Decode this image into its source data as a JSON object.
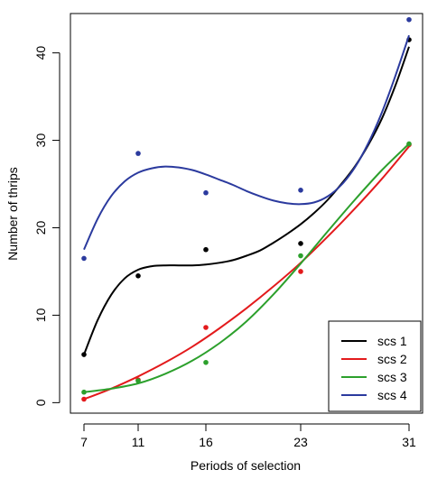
{
  "chart_data": {
    "type": "scatter",
    "title": "",
    "xlabel": "Periods of selection",
    "ylabel": "Number of thrips",
    "x_ticks": [
      "7",
      "11",
      "16",
      "23",
      "31"
    ],
    "y_ticks": [
      "0",
      "10",
      "20",
      "30",
      "40"
    ],
    "xlim": [
      6.0,
      32.0
    ],
    "ylim": [
      -1.2,
      44.5
    ],
    "legend_position": "bottom-right",
    "x": [
      7,
      11,
      16,
      23,
      31
    ],
    "series": [
      {
        "name": "scs 1",
        "color": "#000000",
        "points": [
          5.5,
          14.5,
          17.5,
          18.2,
          41.5
        ],
        "curve": [
          [
            7,
            5.5
          ],
          [
            8,
            9.4
          ],
          [
            9,
            12.3
          ],
          [
            10,
            14.2
          ],
          [
            11,
            15.2
          ],
          [
            12,
            15.6
          ],
          [
            13,
            15.7
          ],
          [
            14,
            15.7
          ],
          [
            15,
            15.7
          ],
          [
            16,
            15.8
          ],
          [
            17,
            16.0
          ],
          [
            18,
            16.3
          ],
          [
            19,
            16.8
          ],
          [
            20,
            17.4
          ],
          [
            21,
            18.3
          ],
          [
            22,
            19.3
          ],
          [
            23,
            20.4
          ],
          [
            24,
            21.7
          ],
          [
            25,
            23.2
          ],
          [
            26,
            25.0
          ],
          [
            27,
            27.0
          ],
          [
            28,
            29.5
          ],
          [
            29,
            32.5
          ],
          [
            30,
            36.3
          ],
          [
            31,
            40.7
          ]
        ]
      },
      {
        "name": "scs 2",
        "color": "#e31a1c",
        "points": [
          0.4,
          2.6,
          8.6,
          15.0,
          29.5
        ],
        "curve": [
          [
            7,
            0.4
          ],
          [
            9,
            1.6
          ],
          [
            11,
            3.0
          ],
          [
            13,
            4.6
          ],
          [
            15,
            6.4
          ],
          [
            17,
            8.5
          ],
          [
            19,
            10.8
          ],
          [
            21,
            13.3
          ],
          [
            23,
            16.0
          ],
          [
            25,
            19.0
          ],
          [
            27,
            22.2
          ],
          [
            29,
            25.6
          ],
          [
            31,
            29.3
          ]
        ]
      },
      {
        "name": "scs 3",
        "color": "#2ca02c",
        "points": [
          1.2,
          2.5,
          4.6,
          16.8,
          29.6
        ],
        "curve": [
          [
            7,
            1.2
          ],
          [
            9,
            1.6
          ],
          [
            11,
            2.2
          ],
          [
            13,
            3.3
          ],
          [
            15,
            4.8
          ],
          [
            17,
            6.8
          ],
          [
            19,
            9.3
          ],
          [
            21,
            12.4
          ],
          [
            23,
            15.9
          ],
          [
            25,
            19.6
          ],
          [
            27,
            23.2
          ],
          [
            29,
            26.6
          ],
          [
            31,
            29.6
          ]
        ]
      },
      {
        "name": "scs 4",
        "color": "#2b3a9e",
        "points": [
          16.5,
          28.5,
          24.0,
          24.3,
          43.8
        ],
        "curve": [
          [
            7,
            17.5
          ],
          [
            8,
            21.0
          ],
          [
            9,
            23.6
          ],
          [
            10,
            25.3
          ],
          [
            11,
            26.3
          ],
          [
            12,
            26.8
          ],
          [
            13,
            27.0
          ],
          [
            14,
            26.9
          ],
          [
            15,
            26.6
          ],
          [
            16,
            26.1
          ],
          [
            17,
            25.5
          ],
          [
            18,
            24.9
          ],
          [
            19,
            24.2
          ],
          [
            20,
            23.6
          ],
          [
            21,
            23.1
          ],
          [
            22,
            22.8
          ],
          [
            23,
            22.7
          ],
          [
            24,
            22.9
          ],
          [
            25,
            23.6
          ],
          [
            26,
            24.9
          ],
          [
            27,
            26.9
          ],
          [
            28,
            29.7
          ],
          [
            29,
            33.2
          ],
          [
            30,
            37.4
          ],
          [
            31,
            42.0
          ]
        ]
      }
    ]
  }
}
